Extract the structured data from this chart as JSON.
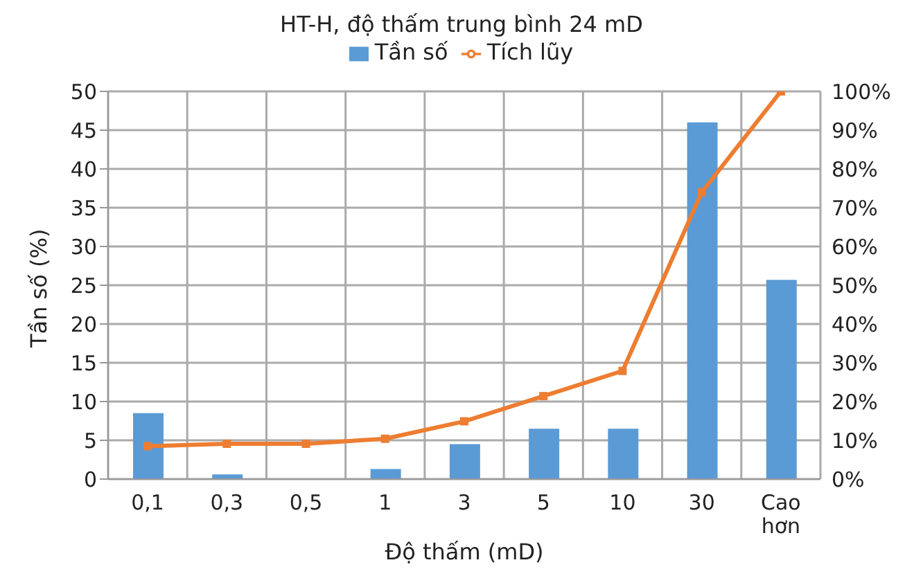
{
  "chart_data": {
    "type": "bar",
    "title": "HT-H, độ thấm trung bình 24 mD",
    "xlabel": "Độ thấm (mD)",
    "ylabel": "Tần số (%)",
    "categories": [
      "0,1",
      "0,3",
      "0,5",
      "1",
      "3",
      "5",
      "10",
      "30",
      "Cao hơn"
    ],
    "series": [
      {
        "name": "Tần số",
        "color": "#5b9bd5",
        "values": [
          8.5,
          0.6,
          0,
          1.3,
          4.5,
          6.5,
          6.5,
          46,
          25.7
        ]
      },
      {
        "name": "Tích lũy",
        "type": "line",
        "axis": "y2",
        "color": "#ed7d31",
        "marker": "square",
        "values": [
          8.5,
          9.1,
          9.1,
          10.4,
          14.9,
          21.4,
          27.9,
          74,
          100
        ]
      }
    ],
    "ylim": [
      0,
      50
    ],
    "yticks": [
      0,
      5,
      10,
      15,
      20,
      25,
      30,
      35,
      40,
      45,
      50
    ],
    "y2lim": [
      0,
      100
    ],
    "y2ticks": [
      {
        "value": 0,
        "label": "0%"
      },
      {
        "value": 10,
        "label": "10%"
      },
      {
        "value": 20,
        "label": "20%"
      },
      {
        "value": 30,
        "label": "30%"
      },
      {
        "value": 40,
        "label": "40%"
      },
      {
        "value": 50,
        "label": "50%"
      },
      {
        "value": 60,
        "label": "60%"
      },
      {
        "value": 70,
        "label": "70%"
      },
      {
        "value": 80,
        "label": "80%"
      },
      {
        "value": 90,
        "label": "90%"
      },
      {
        "value": 100,
        "label": "100%"
      }
    ],
    "grid": true,
    "legend": "top"
  }
}
